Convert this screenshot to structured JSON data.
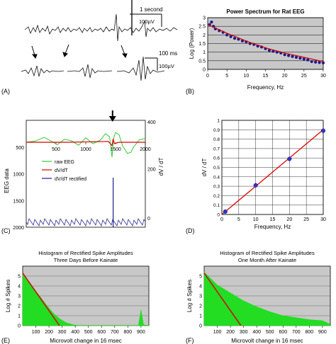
{
  "panel_labels": [
    "(A)",
    "(B)",
    "(C)",
    "(D)",
    "(E)",
    "(F)"
  ],
  "panel_a": {
    "scale_top": {
      "time": "1 second",
      "amplitude": "100µV"
    },
    "scale_bottom": {
      "time": "100 ms",
      "amplitude": "100µV"
    }
  },
  "colors": {
    "axes": "#000000",
    "plot_bg_gray": "#c8c8c8",
    "gridline": "#000000",
    "fit_red": "#dd0000",
    "data_blue": "#1a1a8c",
    "eeg_green": "#33cc33",
    "hist_green": "#22dd22",
    "trace_black": "#111111"
  },
  "chart_data": [
    {
      "id": "B",
      "type": "scatter",
      "title": "Power Spectrum for Rat EEG",
      "xlabel": "Frequency, Hz",
      "ylabel": "Log (Power)",
      "xlim": [
        0,
        30
      ],
      "ylim": [
        0,
        3
      ],
      "xticks": [
        "0",
        "5",
        "10",
        "15",
        "20",
        "25",
        "30"
      ],
      "yticks": [
        "0",
        "0.5",
        "1",
        "1.5",
        "2",
        "2.5",
        "3"
      ],
      "grid": "horizontal",
      "series": [
        {
          "points": [
            [
              0.5,
              2.6
            ],
            [
              1,
              2.75
            ],
            [
              1.5,
              2.5
            ],
            [
              2,
              2.35
            ],
            [
              3,
              2.25
            ],
            [
              4,
              2.15
            ],
            [
              5,
              2.0
            ],
            [
              6,
              1.9
            ],
            [
              7,
              1.8
            ],
            [
              8,
              1.75
            ],
            [
              9,
              1.65
            ],
            [
              10,
              1.6
            ],
            [
              11,
              1.5
            ],
            [
              12,
              1.45
            ],
            [
              13,
              1.35
            ],
            [
              14,
              1.3
            ],
            [
              15,
              1.2
            ],
            [
              16,
              1.1
            ],
            [
              17,
              1.05
            ],
            [
              18,
              1.0
            ],
            [
              19,
              0.95
            ],
            [
              20,
              0.85
            ],
            [
              21,
              0.8
            ],
            [
              22,
              0.75
            ],
            [
              23,
              0.7
            ],
            [
              24,
              0.65
            ],
            [
              25,
              0.6
            ],
            [
              26,
              0.55
            ],
            [
              27,
              0.45
            ],
            [
              28,
              0.42
            ],
            [
              29,
              0.4
            ],
            [
              30,
              0.38
            ]
          ]
        },
        {
          "fit": "line",
          "points": [
            [
              0,
              2.6
            ],
            [
              5,
              2.1
            ],
            [
              10,
              1.65
            ],
            [
              15,
              1.25
            ],
            [
              20,
              0.95
            ],
            [
              25,
              0.7
            ],
            [
              30,
              0.45
            ]
          ]
        }
      ]
    },
    {
      "id": "C",
      "type": "line",
      "xlim": [
        0,
        2000
      ],
      "xticks": [
        "500",
        "1000",
        "1500",
        "2000"
      ],
      "ylabel_left": "EEG data",
      "ylabel_right": "dV / dT",
      "yticks_left": [
        "2000",
        "1500",
        "1000",
        "500"
      ],
      "yticks_right": [
        "400",
        "200",
        "0"
      ],
      "yticks_right_values": [
        400,
        200,
        0
      ],
      "ylim_right": [
        -100,
        400
      ],
      "marker_x": 1450,
      "legend": [
        {
          "label": "raw EEG",
          "color": "#33cc33"
        },
        {
          "label": "dV/dT",
          "color": "#dd0000"
        },
        {
          "label": "dV/dT rectified",
          "color": "#1a1a8c"
        }
      ],
      "series": [
        {
          "color": "#33cc33",
          "points": [
            [
              0,
              0
            ],
            [
              150,
              5
            ],
            [
              300,
              20
            ],
            [
              420,
              5
            ],
            [
              520,
              -10
            ],
            [
              640,
              12
            ],
            [
              760,
              6
            ],
            [
              880,
              -12
            ],
            [
              1000,
              18
            ],
            [
              1120,
              -6
            ],
            [
              1250,
              10
            ],
            [
              1330,
              35
            ],
            [
              1400,
              22
            ],
            [
              1440,
              -60
            ],
            [
              1465,
              15
            ],
            [
              1500,
              40
            ],
            [
              1560,
              30
            ],
            [
              1620,
              -15
            ],
            [
              1700,
              -45
            ],
            [
              1760,
              -40
            ],
            [
              1800,
              -20
            ],
            [
              1900,
              10
            ],
            [
              2000,
              15
            ]
          ]
        },
        {
          "color": "#dd0000",
          "points": [
            [
              0,
              0
            ],
            [
              700,
              0
            ],
            [
              1380,
              2
            ],
            [
              1440,
              -8
            ],
            [
              1460,
              8
            ],
            [
              1480,
              -3
            ],
            [
              1560,
              0
            ],
            [
              2000,
              0
            ]
          ]
        },
        {
          "color": "#1a1a8c",
          "rectified": true,
          "points": [
            [
              1460,
              150
            ]
          ]
        }
      ]
    },
    {
      "id": "D",
      "type": "scatter",
      "xlabel": "Frequency, Hz",
      "ylabel": "dV / dT",
      "xlim": [
        0,
        30
      ],
      "ylim": [
        0,
        1
      ],
      "xticks": [
        "0",
        "5",
        "10",
        "15",
        "20",
        "25",
        "30"
      ],
      "yticks": [
        "0",
        "0.1",
        "0.2",
        "0.3",
        "0.4",
        "0.5",
        "0.6",
        "0.7",
        "0.8",
        "0.9",
        "1"
      ],
      "grid": "both",
      "series": [
        {
          "points": [
            [
              1,
              0.03
            ],
            [
              10,
              0.31
            ],
            [
              20,
              0.59
            ],
            [
              30,
              0.89
            ]
          ]
        },
        {
          "fit": "line",
          "points": [
            [
              0,
              0.0
            ],
            [
              30,
              0.9
            ]
          ]
        }
      ]
    },
    {
      "id": "E",
      "type": "bar",
      "title": "Histogram of Rectified Spike Amplitudes",
      "subtitle": "Three Days Before Kainate",
      "xlabel": "Microvolt change in 16 msec",
      "ylabel": "Log # Spikes",
      "xlim": [
        0,
        960
      ],
      "ylim": [
        0,
        6
      ],
      "xticks": [
        "100",
        "200",
        "300",
        "400",
        "500",
        "600",
        "700",
        "800",
        "900"
      ],
      "yticks": [
        "0",
        "1",
        "2",
        "3",
        "4",
        "5"
      ],
      "grid": "horizontal",
      "fit": [
        [
          0,
          5.3
        ],
        [
          280,
          0
        ]
      ],
      "bins": [
        [
          0,
          5.3
        ],
        [
          100,
          3.5
        ],
        [
          180,
          2.1
        ],
        [
          230,
          1.3
        ],
        [
          280,
          0.7
        ],
        [
          330,
          0.3
        ],
        [
          380,
          0.1
        ],
        [
          430,
          0
        ],
        [
          880,
          0
        ],
        [
          900,
          1.6
        ],
        [
          920,
          0.1
        ],
        [
          960,
          0
        ]
      ]
    },
    {
      "id": "F",
      "type": "bar",
      "title": "Histogram of Rectified Spike Amplitudes",
      "subtitle": "One Month After Kainate",
      "xlabel": "Microvolt change in 16 msec",
      "ylabel": "Log # Spikes",
      "xlim": [
        0,
        960
      ],
      "ylim": [
        0,
        6
      ],
      "xticks": [
        "100",
        "200",
        "300",
        "400",
        "500",
        "600",
        "700",
        "800",
        "900"
      ],
      "yticks": [
        "0",
        "1",
        "2",
        "3",
        "4",
        "5"
      ],
      "grid": "horizontal",
      "fit": [
        [
          0,
          5.3
        ],
        [
          280,
          0
        ]
      ],
      "bins": [
        [
          0,
          5.4
        ],
        [
          100,
          4.1
        ],
        [
          200,
          3.3
        ],
        [
          300,
          2.5
        ],
        [
          400,
          1.9
        ],
        [
          500,
          1.4
        ],
        [
          600,
          1.0
        ],
        [
          700,
          0.8
        ],
        [
          800,
          0.6
        ],
        [
          900,
          0.5
        ],
        [
          950,
          0.2
        ],
        [
          960,
          0
        ]
      ]
    }
  ]
}
